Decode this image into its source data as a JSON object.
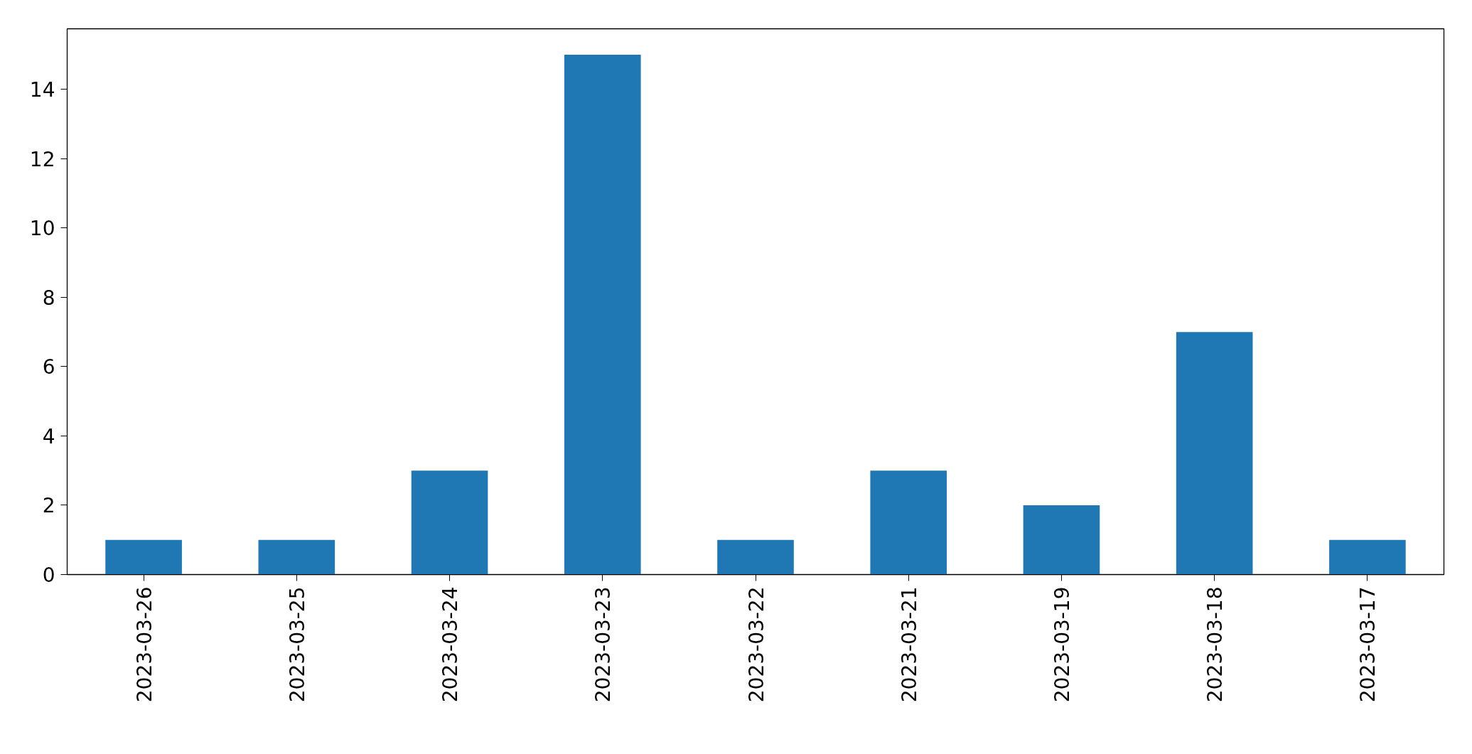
{
  "chart_data": {
    "type": "bar",
    "categories": [
      "2023-03-26",
      "2023-03-25",
      "2023-03-24",
      "2023-03-23",
      "2023-03-22",
      "2023-03-21",
      "2023-03-19",
      "2023-03-18",
      "2023-03-17"
    ],
    "values": [
      1,
      1,
      3,
      15,
      1,
      3,
      2,
      7,
      1
    ],
    "color": "#1f77b4",
    "ylim": [
      0,
      15.75
    ],
    "yticks": [
      0,
      2,
      4,
      6,
      8,
      10,
      12,
      14
    ],
    "grid": false
  }
}
